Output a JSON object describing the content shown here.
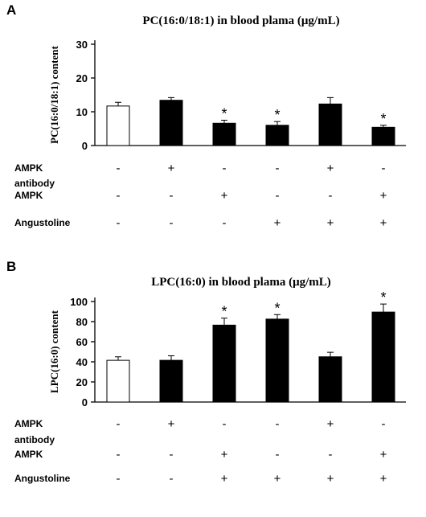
{
  "chart_data": [
    {
      "type": "bar",
      "panel": "A",
      "title": "PC(16:0/18:1) in  blood plama (μg/mL)",
      "ylabel": "PC(16:0/18:1) content",
      "ylim": [
        0,
        30
      ],
      "yticks": [
        0,
        10,
        20,
        30
      ],
      "values": [
        11.7,
        13.4,
        6.6,
        6.0,
        12.3,
        5.4
      ],
      "errors": [
        1.1,
        0.8,
        0.9,
        1.1,
        1.9,
        0.6
      ],
      "fill": [
        "white",
        "black",
        "black",
        "black",
        "black",
        "black"
      ],
      "significant": [
        false,
        false,
        true,
        true,
        false,
        true
      ],
      "star_label": "*",
      "rows": [
        {
          "label": "AMPK",
          "label2": "antibody",
          "signs": [
            "-",
            "+",
            "-",
            "-",
            "+",
            "-"
          ]
        },
        {
          "label": "AMPK",
          "label2": "",
          "signs": [
            "-",
            "-",
            "+",
            "-",
            "-",
            "+"
          ]
        },
        {
          "label": "Angustoline",
          "label2": "",
          "signs": [
            "-",
            "-",
            "-",
            "+",
            "+",
            "+"
          ]
        }
      ]
    },
    {
      "type": "bar",
      "panel": "B",
      "title": "LPC(16:0) in  blood plama (μg/mL)",
      "ylabel": "LPC(16:0) content",
      "ylim": [
        0,
        100
      ],
      "yticks": [
        0,
        20,
        40,
        60,
        80,
        100
      ],
      "values": [
        41.5,
        41.5,
        76.5,
        82.5,
        45.0,
        89.5
      ],
      "errors": [
        3.5,
        4.5,
        7.0,
        4.5,
        4.5,
        8.0
      ],
      "fill": [
        "white",
        "black",
        "black",
        "black",
        "black",
        "black"
      ],
      "significant": [
        false,
        false,
        true,
        true,
        false,
        true
      ],
      "star_label": "*",
      "rows": [
        {
          "label": "AMPK",
          "label2": "antibody",
          "signs": [
            "-",
            "+",
            "-",
            "-",
            "+",
            "-"
          ]
        },
        {
          "label": "AMPK",
          "label2": "",
          "signs": [
            "-",
            "-",
            "+",
            "-",
            "-",
            "+"
          ]
        },
        {
          "label": "Angustoline",
          "label2": "",
          "signs": [
            "-",
            "-",
            "+",
            "+",
            "+",
            "+"
          ]
        }
      ]
    }
  ],
  "colors": {
    "bar_black": "#000000",
    "bar_white": "#ffffff",
    "axis": "#000000"
  }
}
